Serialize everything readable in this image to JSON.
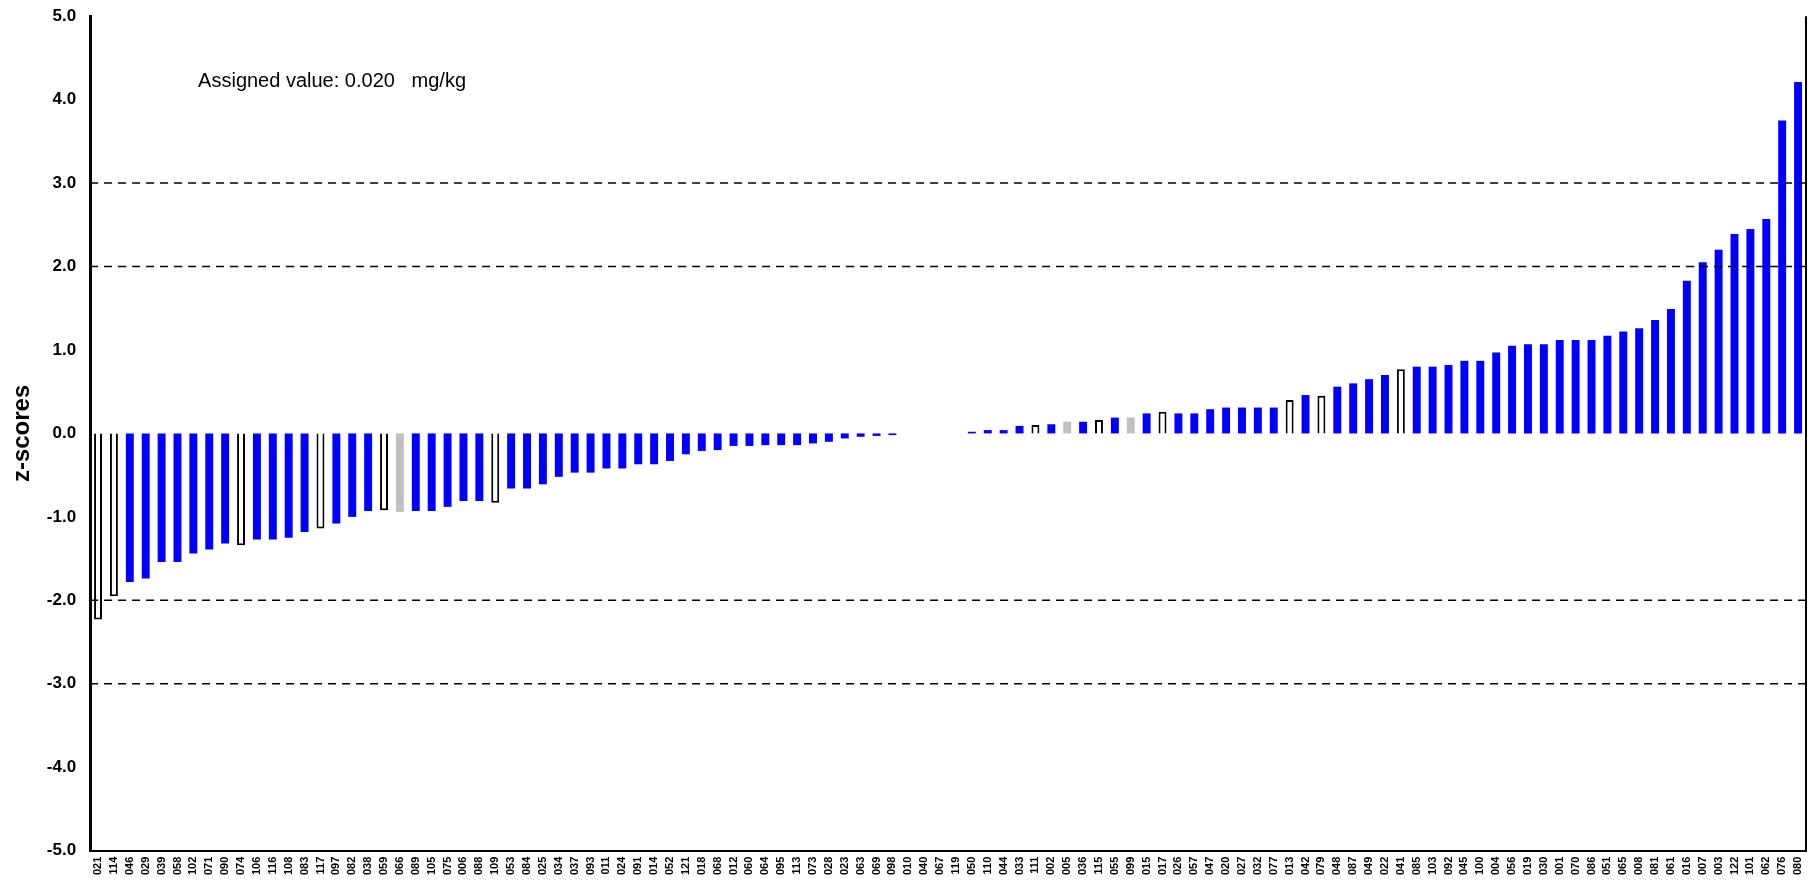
{
  "chart_data": {
    "type": "bar",
    "ylabel": "z-scores",
    "annotations": [
      "Assigned value: 0.020   mg/kg"
    ],
    "categories": [
      "021",
      "114",
      "046",
      "029",
      "039",
      "058",
      "102",
      "071",
      "090",
      "074",
      "106",
      "116",
      "108",
      "083",
      "117",
      "097",
      "082",
      "038",
      "059",
      "066",
      "089",
      "105",
      "075",
      "006",
      "088",
      "109",
      "053",
      "084",
      "025",
      "034",
      "037",
      "093",
      "011",
      "024",
      "091",
      "014",
      "052",
      "121",
      "018",
      "068",
      "012",
      "060",
      "064",
      "095",
      "113",
      "073",
      "028",
      "023",
      "063",
      "069",
      "098",
      "010",
      "040",
      "067",
      "119",
      "050",
      "110",
      "044",
      "033",
      "111",
      "002",
      "005",
      "036",
      "115",
      "055",
      "099",
      "015",
      "017",
      "026",
      "057",
      "047",
      "020",
      "027",
      "032",
      "077",
      "013",
      "042",
      "079",
      "048",
      "087",
      "049",
      "022",
      "041",
      "085",
      "103",
      "092",
      "045",
      "100",
      "004",
      "056",
      "019",
      "030",
      "001",
      "070",
      "086",
      "051",
      "065",
      "008",
      "081",
      "061",
      "016",
      "007",
      "003",
      "122",
      "101",
      "062",
      "076",
      "080"
    ],
    "values": [
      -2.23,
      -1.95,
      -1.78,
      -1.74,
      -1.54,
      -1.54,
      -1.44,
      -1.39,
      -1.32,
      -1.34,
      -1.27,
      -1.27,
      -1.25,
      -1.18,
      -1.14,
      -1.08,
      -1.0,
      -0.93,
      -0.92,
      -0.94,
      -0.93,
      -0.93,
      -0.88,
      -0.81,
      -0.81,
      -0.83,
      -0.66,
      -0.66,
      -0.61,
      -0.52,
      -0.47,
      -0.47,
      -0.42,
      -0.42,
      -0.37,
      -0.37,
      -0.33,
      -0.25,
      -0.21,
      -0.2,
      -0.15,
      -0.15,
      -0.14,
      -0.14,
      -0.14,
      -0.12,
      -0.1,
      -0.06,
      -0.04,
      -0.03,
      -0.02,
      0,
      0,
      0,
      0,
      0.02,
      0.04,
      0.04,
      0.09,
      0.1,
      0.11,
      0.14,
      0.14,
      0.16,
      0.19,
      0.19,
      0.24,
      0.26,
      0.24,
      0.24,
      0.29,
      0.31,
      0.31,
      0.31,
      0.31,
      0.4,
      0.46,
      0.45,
      0.56,
      0.6,
      0.65,
      0.7,
      0.77,
      0.8,
      0.8,
      0.82,
      0.87,
      0.87,
      0.97,
      1.05,
      1.07,
      1.07,
      1.12,
      1.12,
      1.12,
      1.17,
      1.22,
      1.26,
      1.36,
      1.49,
      1.83,
      2.05,
      2.2,
      2.39,
      2.45,
      2.57,
      3.75,
      4.21
    ],
    "colors": [
      "#ffffff",
      "#ffffff",
      "#0000ff",
      "#0000ff",
      "#0000ff",
      "#0000ff",
      "#0000ff",
      "#0000ff",
      "#0000ff",
      "#ffffff",
      "#0000ff",
      "#0000ff",
      "#0000ff",
      "#0000ff",
      "#ffffff",
      "#0000ff",
      "#0000ff",
      "#0000ff",
      "#ffffff",
      "#c0c0c0",
      "#0000ff",
      "#0000ff",
      "#0000ff",
      "#0000ff",
      "#0000ff",
      "#ffffff",
      "#0000ff",
      "#0000ff",
      "#0000ff",
      "#0000ff",
      "#0000ff",
      "#0000ff",
      "#0000ff",
      "#0000ff",
      "#0000ff",
      "#0000ff",
      "#0000ff",
      "#0000ff",
      "#0000ff",
      "#0000ff",
      "#0000ff",
      "#0000ff",
      "#0000ff",
      "#0000ff",
      "#0000ff",
      "#0000ff",
      "#0000ff",
      "#0000ff",
      "#0000ff",
      "#0000ff",
      "#0000ff",
      "#0000ff",
      "#0000ff",
      "#0000ff",
      "#0000ff",
      "#0000ff",
      "#0000ff",
      "#0000ff",
      "#0000ff",
      "#ffffff",
      "#0000ff",
      "#c0c0c0",
      "#0000ff",
      "#ffffff",
      "#0000ff",
      "#c0c0c0",
      "#0000ff",
      "#ffffff",
      "#0000ff",
      "#0000ff",
      "#0000ff",
      "#0000ff",
      "#0000ff",
      "#0000ff",
      "#0000ff",
      "#ffffff",
      "#0000ff",
      "#ffffff",
      "#0000ff",
      "#0000ff",
      "#0000ff",
      "#0000ff",
      "#ffffff",
      "#0000ff",
      "#0000ff",
      "#0000ff",
      "#0000ff",
      "#0000ff",
      "#0000ff",
      "#0000ff",
      "#0000ff",
      "#0000ff",
      "#0000ff",
      "#0000ff",
      "#0000ff",
      "#0000ff",
      "#0000ff",
      "#0000ff",
      "#0000ff",
      "#0000ff",
      "#0000ff",
      "#0000ff",
      "#0000ff",
      "#0000ff",
      "#0000ff",
      "#0000ff",
      "#0000ff",
      "#0000ff"
    ],
    "ylim": [
      -5,
      5
    ],
    "yticks": [
      {
        "value": -5,
        "label": "-5.0"
      },
      {
        "value": -4,
        "label": "-4.0"
      },
      {
        "value": -3,
        "label": "-3.0"
      },
      {
        "value": -2,
        "label": "-2.0"
      },
      {
        "value": -1,
        "label": "-1.0"
      },
      {
        "value": 0,
        "label": "0.0"
      },
      {
        "value": 1,
        "label": "1.0"
      },
      {
        "value": 2,
        "label": "2.0"
      },
      {
        "value": 3,
        "label": "3.0"
      },
      {
        "value": 4,
        "label": "4.0"
      },
      {
        "value": 5,
        "label": "5.0"
      }
    ],
    "ref_lines": [
      {
        "axis": "y",
        "value": 3,
        "color": "#000000",
        "line_style": "dashed"
      },
      {
        "axis": "y",
        "value": 2,
        "color": "#000000",
        "line_style": "dashed"
      },
      {
        "axis": "y",
        "value": -2,
        "color": "#000000",
        "line_style": "dashed"
      },
      {
        "axis": "y",
        "value": -3,
        "color": "#000000",
        "line_style": "dashed"
      }
    ],
    "grid": false,
    "legend": false
  }
}
